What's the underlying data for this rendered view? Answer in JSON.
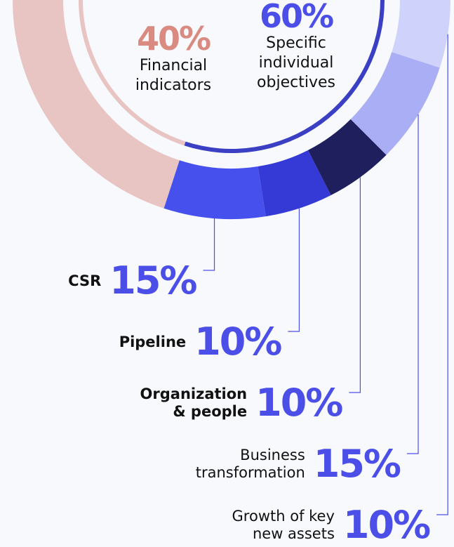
{
  "chart_data": {
    "type": "donut",
    "inner": {
      "categories": [
        "Financial\nindicators",
        "Specific\nindividual\nobjectives"
      ],
      "values": [
        40,
        60
      ],
      "value_labels": [
        "40%",
        "60%"
      ],
      "colors": [
        "#e8c4c2",
        "#3a3fc4"
      ],
      "label_colors": [
        "#d98b82",
        "#4b4fe8"
      ]
    },
    "outer": {
      "categories": [
        "CSR",
        "Pipeline",
        "Organization\n& people",
        "Business\ntransformation",
        "Growth of key\nnew assets"
      ],
      "values": [
        15,
        10,
        10,
        15,
        10
      ],
      "value_labels": [
        "15%",
        "10%",
        "10%",
        "15%",
        "10%"
      ],
      "colors": [
        "#4650ec",
        "#3539d6",
        "#1f1f5e",
        "#a9aef5",
        "#cfd2fb"
      ],
      "label_color": "#4b4fe8"
    }
  }
}
